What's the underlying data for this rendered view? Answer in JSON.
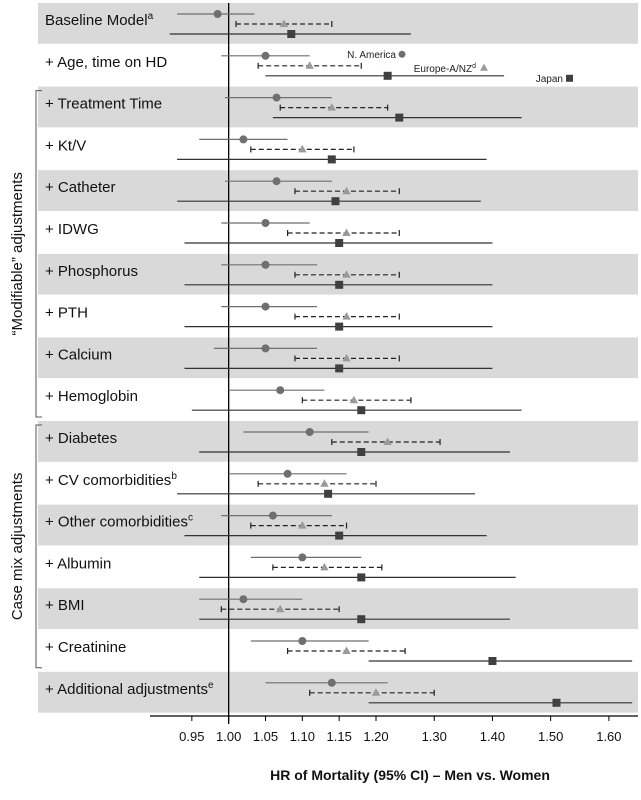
{
  "chart_data": {
    "type": "forest",
    "xlabel": "HR of Mortality (95% CI) – Men vs. Women",
    "x_ticks": [
      0.95,
      1.0,
      1.05,
      1.1,
      1.15,
      1.2,
      1.3,
      1.4,
      1.5,
      1.6
    ],
    "x_tick_labels": [
      "0.95",
      "1.00",
      "1.05",
      "1.10",
      "1.15",
      "1.20",
      "1.30",
      "1.40",
      "1.50",
      "1.60"
    ],
    "xlim": [
      0.9,
      1.65
    ],
    "reference_line": 1.0,
    "legend": [
      {
        "name": "N. America",
        "marker": "circle",
        "color": "#6f6f6f"
      },
      {
        "name": "Europe-A/NZ",
        "sup": "d",
        "marker": "triangle",
        "color": "#9a9a9a"
      },
      {
        "name": "Japan",
        "marker": "square",
        "color": "#404040"
      }
    ],
    "groups": [
      {
        "label": "“Modifiable” adjustments",
        "first_row": 2,
        "last_row": 9
      },
      {
        "label": "Case mix adjustments",
        "first_row": 10,
        "last_row": 15
      }
    ],
    "rows": [
      {
        "label": "Baseline Model",
        "sup": "a",
        "shaded": true,
        "na": [
          0.985,
          0.93,
          1.035
        ],
        "eu": [
          1.075,
          1.01,
          1.14
        ],
        "jp": [
          1.085,
          0.92,
          1.26
        ]
      },
      {
        "label": "+ Age, time on HD",
        "sup": "",
        "shaded": false,
        "na": [
          1.05,
          0.99,
          1.11
        ],
        "eu": [
          1.11,
          1.04,
          1.18
        ],
        "jp": [
          1.22,
          1.05,
          1.42
        ]
      },
      {
        "label": "+ Treatment Time",
        "sup": "",
        "shaded": true,
        "na": [
          1.065,
          0.995,
          1.14
        ],
        "eu": [
          1.14,
          1.07,
          1.22
        ],
        "jp": [
          1.24,
          1.06,
          1.45
        ]
      },
      {
        "label": "+ Kt/V",
        "sup": "",
        "shaded": false,
        "na": [
          1.02,
          0.96,
          1.08
        ],
        "eu": [
          1.1,
          1.03,
          1.17
        ],
        "jp": [
          1.14,
          0.93,
          1.39
        ]
      },
      {
        "label": "+ Catheter",
        "sup": "",
        "shaded": true,
        "na": [
          1.065,
          0.995,
          1.14
        ],
        "eu": [
          1.16,
          1.09,
          1.24
        ],
        "jp": [
          1.145,
          0.93,
          1.38
        ]
      },
      {
        "label": "+ IDWG",
        "sup": "",
        "shaded": false,
        "na": [
          1.05,
          0.99,
          1.11
        ],
        "eu": [
          1.16,
          1.08,
          1.24
        ],
        "jp": [
          1.15,
          0.94,
          1.4
        ]
      },
      {
        "label": "+ Phosphorus",
        "sup": "",
        "shaded": true,
        "na": [
          1.05,
          0.99,
          1.12
        ],
        "eu": [
          1.16,
          1.09,
          1.24
        ],
        "jp": [
          1.15,
          0.94,
          1.4
        ]
      },
      {
        "label": "+ PTH",
        "sup": "",
        "shaded": false,
        "na": [
          1.05,
          0.99,
          1.12
        ],
        "eu": [
          1.16,
          1.09,
          1.24
        ],
        "jp": [
          1.15,
          0.94,
          1.4
        ]
      },
      {
        "label": "+ Calcium",
        "sup": "",
        "shaded": true,
        "na": [
          1.05,
          0.98,
          1.12
        ],
        "eu": [
          1.16,
          1.09,
          1.24
        ],
        "jp": [
          1.15,
          0.94,
          1.4
        ]
      },
      {
        "label": "+ Hemoglobin",
        "sup": "",
        "shaded": false,
        "na": [
          1.07,
          1.0,
          1.13
        ],
        "eu": [
          1.17,
          1.1,
          1.26
        ],
        "jp": [
          1.18,
          0.95,
          1.45
        ]
      },
      {
        "label": "+ Diabetes",
        "sup": "",
        "shaded": true,
        "na": [
          1.11,
          1.02,
          1.19
        ],
        "eu": [
          1.22,
          1.14,
          1.31
        ],
        "jp": [
          1.18,
          0.96,
          1.43
        ]
      },
      {
        "label": "+ CV comorbidities",
        "sup": "b",
        "shaded": false,
        "na": [
          1.08,
          1.0,
          1.16
        ],
        "eu": [
          1.13,
          1.04,
          1.2
        ],
        "jp": [
          1.135,
          0.93,
          1.37
        ]
      },
      {
        "label": "+ Other comorbidities",
        "sup": "c",
        "shaded": true,
        "na": [
          1.06,
          0.99,
          1.14
        ],
        "eu": [
          1.1,
          1.03,
          1.16
        ],
        "jp": [
          1.15,
          0.94,
          1.39
        ]
      },
      {
        "label": "+ Albumin",
        "sup": "",
        "shaded": false,
        "na": [
          1.1,
          1.03,
          1.18
        ],
        "eu": [
          1.13,
          1.06,
          1.21
        ],
        "jp": [
          1.18,
          0.96,
          1.44
        ]
      },
      {
        "label": "+ BMI",
        "sup": "",
        "shaded": true,
        "na": [
          1.02,
          0.96,
          1.1
        ],
        "eu": [
          1.07,
          0.99,
          1.15
        ],
        "jp": [
          1.18,
          0.96,
          1.43
        ]
      },
      {
        "label": "+ Creatinine",
        "sup": "",
        "shaded": false,
        "na": [
          1.1,
          1.03,
          1.19
        ],
        "eu": [
          1.16,
          1.08,
          1.25
        ],
        "jp": [
          1.4,
          1.19,
          1.64
        ]
      },
      {
        "label": "+ Additional adjustments",
        "sup": "e",
        "shaded": true,
        "na": [
          1.14,
          1.05,
          1.22
        ],
        "eu": [
          1.2,
          1.11,
          1.3
        ],
        "jp": [
          1.51,
          1.19,
          1.64
        ]
      }
    ]
  }
}
